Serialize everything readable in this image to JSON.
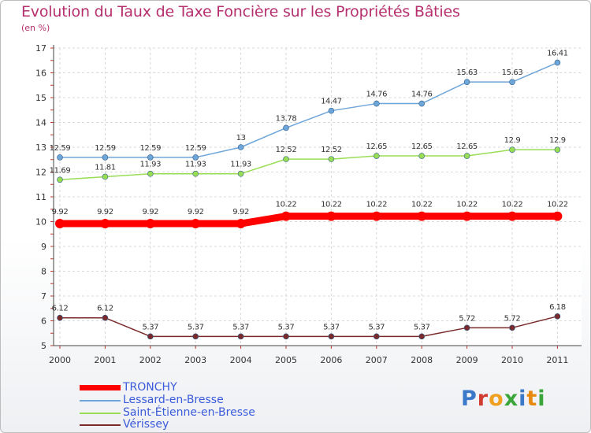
{
  "title": "Evolution du Taux de Taxe Foncière sur les Propriétés Bâties",
  "unit_label": "(en %)",
  "logo": {
    "text": "Proxiti",
    "letter_colors": [
      "#3a78c9",
      "#d23b2f",
      "#f0a020",
      "#3aa63a",
      "#3a78c9",
      "#e88a10",
      "#3aa63a"
    ]
  },
  "chart_data": {
    "type": "line",
    "x": [
      "2000",
      "2001",
      "2002",
      "2003",
      "2004",
      "2005",
      "2006",
      "2007",
      "2008",
      "2009",
      "2010",
      "2011"
    ],
    "ylim": [
      5,
      17
    ],
    "yticks": [
      5,
      6,
      7,
      8,
      9,
      10,
      11,
      12,
      13,
      14,
      15,
      16,
      17
    ],
    "grid": true,
    "series": [
      {
        "name": "TRONCHY",
        "color": "#ff0000",
        "values": [
          9.92,
          9.92,
          9.92,
          9.92,
          9.92,
          10.22,
          10.22,
          10.22,
          10.22,
          10.22,
          10.22,
          10.22
        ],
        "labels": [
          "9.92",
          "9.92",
          "9.92",
          "9.92",
          "9.92",
          "10.22",
          "10.22",
          "10.22",
          "10.22",
          "10.22",
          "10.22",
          "10.22"
        ]
      },
      {
        "name": "Lessard-en-Bresse",
        "color": "#6fa6d9",
        "values": [
          12.59,
          12.59,
          12.59,
          12.59,
          13,
          13.78,
          14.47,
          14.76,
          14.76,
          15.63,
          15.63,
          16.41
        ],
        "labels": [
          "12.59",
          "12.59",
          "12.59",
          "12.59",
          "13",
          "13.78",
          "14.47",
          "14.76",
          "14.76",
          "15.63",
          "15.63",
          "16.41"
        ]
      },
      {
        "name": "Saint-Étienne-en-Bresse",
        "color": "#99dd55",
        "values": [
          11.69,
          11.81,
          11.93,
          11.93,
          11.93,
          12.52,
          12.52,
          12.65,
          12.65,
          12.65,
          12.9,
          12.9
        ],
        "labels": [
          "11.69",
          "11.81",
          "11.93",
          "11.93",
          "11.93",
          "12.52",
          "12.52",
          "12.65",
          "12.65",
          "12.65",
          "12.9",
          "12.9"
        ]
      },
      {
        "name": "Vérissey",
        "color": "#7a2a2a",
        "values": [
          6.12,
          6.12,
          5.37,
          5.37,
          5.37,
          5.37,
          5.37,
          5.37,
          5.37,
          5.72,
          5.72,
          6.18
        ],
        "labels": [
          "6.12",
          "6.12",
          "5.37",
          "5.37",
          "5.37",
          "5.37",
          "5.37",
          "5.37",
          "5.37",
          "5.72",
          "5.72",
          "6.18"
        ]
      }
    ]
  }
}
